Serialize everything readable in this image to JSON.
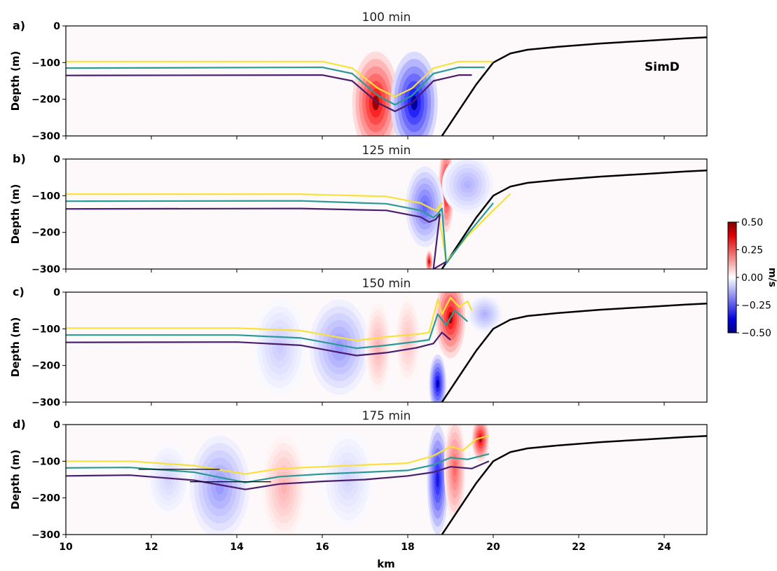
{
  "figure": {
    "xlabel": "km",
    "ylabel": "Depth (m)",
    "annotation": "SimD"
  },
  "colors": {
    "yellow_isopycnal": "#f7e13a",
    "teal_isopycnal": "#2a9a94",
    "purple_isopycnal": "#4a1e6e",
    "bathymetry": "#000000",
    "colormap": "seismic"
  },
  "chart_data": {
    "type": "heatmap",
    "xlim": [
      10,
      25
    ],
    "ylim": [
      -300,
      0
    ],
    "x_ticks": [
      10,
      12,
      14,
      16,
      18,
      20,
      22,
      24
    ],
    "y_ticks": [
      0,
      -100,
      -200,
      -300
    ],
    "colorbar": {
      "label": "m/s",
      "range": [
        -0.5,
        0.5
      ],
      "ticks": [
        "0.50",
        "0.25",
        "0.00",
        "−0.25",
        "−0.50"
      ]
    },
    "bathymetry": {
      "x": [
        18.8,
        19.2,
        19.6,
        20.0,
        20.4,
        20.8,
        21.5,
        22.5,
        23.5,
        24.5,
        25.0
      ],
      "y": [
        -300,
        -230,
        -160,
        -100,
        -75,
        -65,
        -57,
        -48,
        -41,
        -34,
        -31
      ]
    },
    "panels": [
      {
        "label": "a)",
        "title": "100 min",
        "annotation": "SimD",
        "series": [
          {
            "color": "#f7e13a",
            "x": [
              10,
              16.0,
              16.7,
              17.3,
              17.7,
              18.1,
              18.6,
              19.2,
              20.0
            ],
            "y": [
              -97,
              -97,
              -115,
              -170,
              -193,
              -170,
              -115,
              -97,
              -97
            ]
          },
          {
            "color": "#2a9a94",
            "x": [
              10,
              16.0,
              16.7,
              17.3,
              17.7,
              18.1,
              18.6,
              19.2,
              19.8
            ],
            "y": [
              -115,
              -113,
              -130,
              -190,
              -215,
              -190,
              -130,
              -113,
              -113
            ]
          },
          {
            "color": "#4a1e6e",
            "x": [
              10,
              16.0,
              16.7,
              17.3,
              17.7,
              18.1,
              18.6,
              19.2,
              19.5
            ],
            "y": [
              -135,
              -134,
              -150,
              -210,
              -233,
              -210,
              -150,
              -134,
              -134
            ]
          }
        ],
        "blobs": [
          {
            "x": 17.25,
            "y": -210,
            "rx": 0.55,
            "ry": 140,
            "v": 0.5
          },
          {
            "x": 18.15,
            "y": -210,
            "rx": 0.55,
            "ry": 140,
            "v": -0.5
          }
        ]
      },
      {
        "label": "b)",
        "title": "125 min",
        "series": [
          {
            "color": "#f7e13a",
            "x": [
              10,
              15.5,
              17.5,
              18.3,
              18.6,
              18.7,
              18.8,
              18.7,
              18.9,
              19.4,
              20.0,
              20.4
            ],
            "y": [
              -96,
              -96,
              -102,
              -120,
              -138,
              -140,
              -120,
              -135,
              -280,
              -210,
              -140,
              -95
            ]
          },
          {
            "color": "#2a9a94",
            "x": [
              10,
              15.5,
              17.5,
              18.3,
              18.6,
              18.7,
              18.8,
              18.9,
              19.4,
              20.0
            ],
            "y": [
              -115,
              -114,
              -122,
              -140,
              -160,
              -150,
              -135,
              -285,
              -205,
              -120
            ]
          },
          {
            "color": "#4a1e6e",
            "x": [
              10,
              15.5,
              17.5,
              18.3,
              18.5,
              18.65,
              18.75,
              18.6,
              18.9
            ],
            "y": [
              -136,
              -135,
              -140,
              -158,
              -172,
              -165,
              -150,
              -300,
              -280
            ]
          }
        ],
        "blobs": [
          {
            "x": 18.9,
            "y": -80,
            "rx": 0.18,
            "ry": 120,
            "v": 0.5
          },
          {
            "x": 18.4,
            "y": -130,
            "rx": 0.45,
            "ry": 110,
            "v": -0.3
          },
          {
            "x": 19.4,
            "y": -70,
            "rx": 0.6,
            "ry": 80,
            "v": -0.15
          },
          {
            "x": 18.5,
            "y": -280,
            "rx": 0.08,
            "ry": 30,
            "v": 0.5
          }
        ]
      },
      {
        "label": "c)",
        "title": "150 min",
        "series": [
          {
            "color": "#f7e13a",
            "x": [
              10,
              14.0,
              15.5,
              16.8,
              17.5,
              18.2,
              18.5,
              18.7,
              18.8,
              19.0,
              19.2,
              19.4,
              19.5
            ],
            "y": [
              -98,
              -98,
              -105,
              -132,
              -122,
              -115,
              -110,
              -20,
              -60,
              -15,
              -40,
              -25,
              -50
            ]
          },
          {
            "color": "#2a9a94",
            "x": [
              10,
              14.0,
              15.5,
              16.8,
              17.5,
              18.2,
              18.5,
              18.7,
              18.9,
              19.1,
              19.3,
              19.4
            ],
            "y": [
              -117,
              -117,
              -125,
              -153,
              -145,
              -135,
              -130,
              -60,
              -90,
              -50,
              -70,
              -80
            ]
          },
          {
            "color": "#4a1e6e",
            "x": [
              10,
              14.0,
              15.5,
              16.8,
              17.5,
              18.2,
              18.6,
              18.8,
              19.0
            ],
            "y": [
              -137,
              -136,
              -145,
              -173,
              -165,
              -152,
              -140,
              -110,
              -130
            ]
          }
        ],
        "blobs": [
          {
            "x": 19.0,
            "y": -70,
            "rx": 0.35,
            "ry": 110,
            "v": 0.5
          },
          {
            "x": 18.7,
            "y": -250,
            "rx": 0.2,
            "ry": 80,
            "v": -0.5
          },
          {
            "x": 16.4,
            "y": -150,
            "rx": 0.7,
            "ry": 130,
            "v": -0.2
          },
          {
            "x": 15.0,
            "y": -150,
            "rx": 0.6,
            "ry": 130,
            "v": -0.1
          },
          {
            "x": 17.3,
            "y": -150,
            "rx": 0.3,
            "ry": 120,
            "v": 0.15
          },
          {
            "x": 18.0,
            "y": -130,
            "rx": 0.3,
            "ry": 120,
            "v": 0.12
          },
          {
            "x": 19.8,
            "y": -60,
            "rx": 0.4,
            "ry": 50,
            "v": -0.15
          }
        ]
      },
      {
        "label": "d)",
        "title": "175 min",
        "series": [
          {
            "color": "#f7e13a",
            "x": [
              10,
              11.5,
              13.0,
              14.2,
              15.0,
              16.0,
              17.0,
              18.0,
              18.6,
              19.0,
              19.3,
              19.6,
              19.9
            ],
            "y": [
              -100,
              -100,
              -112,
              -135,
              -120,
              -115,
              -110,
              -105,
              -85,
              -60,
              -70,
              -40,
              -30
            ]
          },
          {
            "color": "#2a9a94",
            "x": [
              10,
              11.5,
              13.0,
              14.2,
              15.0,
              16.0,
              17.0,
              18.0,
              18.6,
              19.0,
              19.4,
              19.9
            ],
            "y": [
              -118,
              -117,
              -130,
              -158,
              -142,
              -135,
              -130,
              -125,
              -110,
              -90,
              -95,
              -80
            ]
          },
          {
            "color": "#4a1e6e",
            "x": [
              10,
              11.5,
              13.0,
              14.2,
              15.0,
              16.0,
              17.0,
              18.0,
              18.6,
              19.0,
              19.5,
              19.9
            ],
            "y": [
              -140,
              -138,
              -152,
              -177,
              -162,
              -155,
              -150,
              -140,
              -130,
              -115,
              -120,
              -100
            ]
          }
        ],
        "blobs": [
          {
            "x": 19.7,
            "y": -40,
            "rx": 0.2,
            "ry": 60,
            "v": 0.5
          },
          {
            "x": 18.7,
            "y": -150,
            "rx": 0.25,
            "ry": 150,
            "v": -0.45
          },
          {
            "x": 13.6,
            "y": -170,
            "rx": 0.7,
            "ry": 140,
            "v": -0.2
          },
          {
            "x": 15.1,
            "y": -170,
            "rx": 0.5,
            "ry": 140,
            "v": 0.15
          },
          {
            "x": 12.4,
            "y": -150,
            "rx": 0.5,
            "ry": 100,
            "v": -0.08
          },
          {
            "x": 16.6,
            "y": -150,
            "rx": 0.6,
            "ry": 130,
            "v": -0.08
          },
          {
            "x": 19.1,
            "y": -120,
            "rx": 0.25,
            "ry": 140,
            "v": 0.3
          }
        ],
        "ref_lines": [
          {
            "x": [
              11.7,
              13.6
            ],
            "y": -122
          },
          {
            "x": [
              12.9,
              14.8
            ],
            "y": -156
          }
        ]
      }
    ]
  }
}
